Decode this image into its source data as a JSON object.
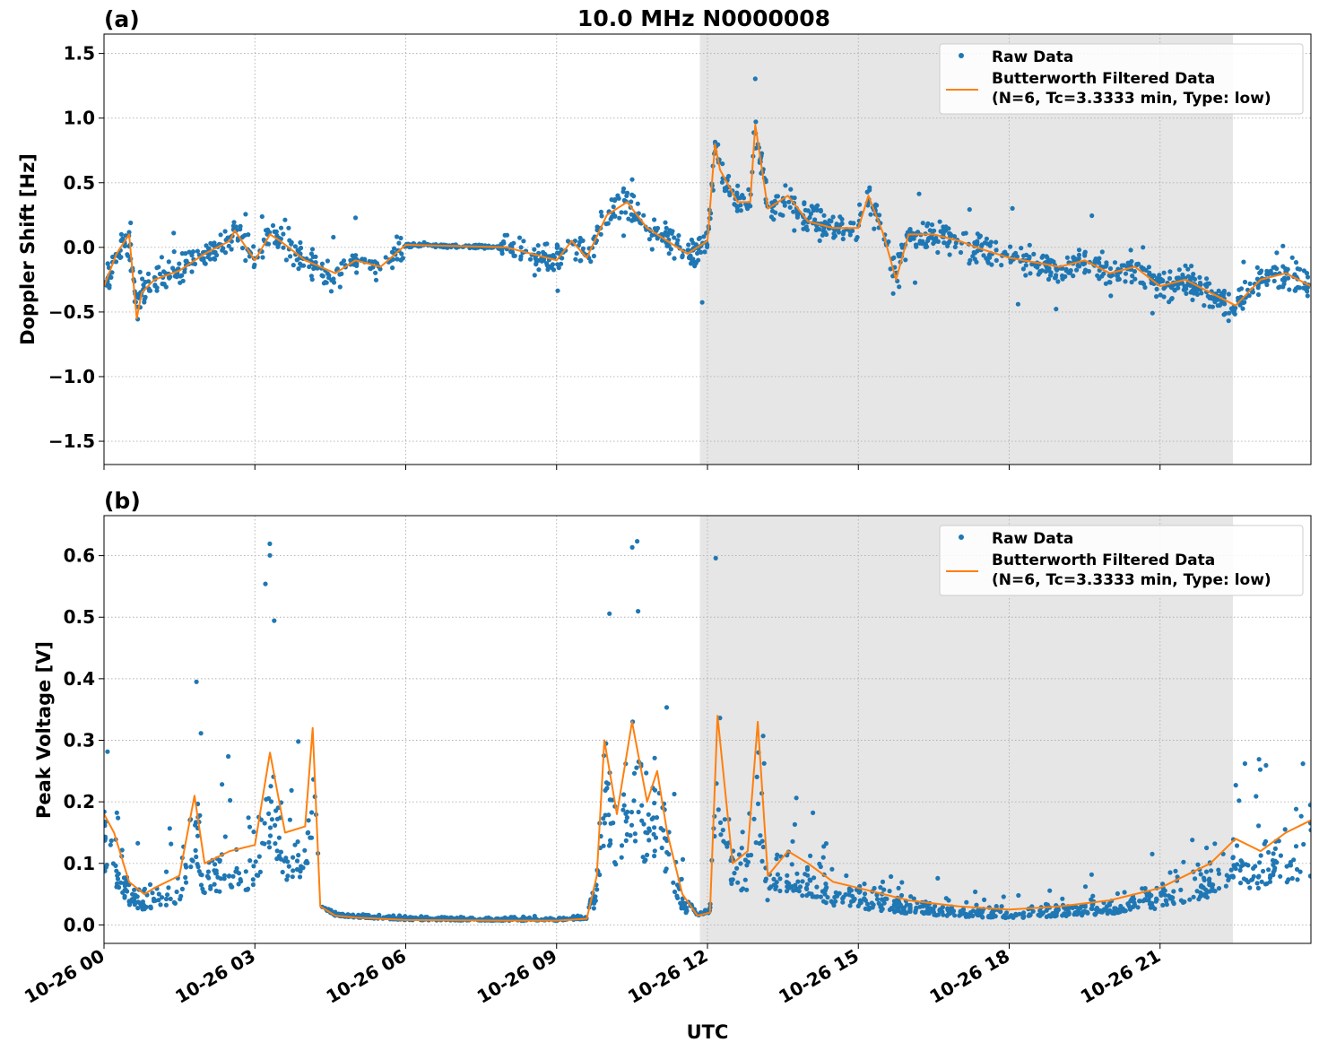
{
  "figure": {
    "title": "10.0 MHz N0000008",
    "xlabel": "UTC"
  },
  "colors": {
    "raw": "#1f77b4",
    "filtered": "#ff7f0e",
    "shade": "#e6e6e6",
    "grid": "#b0b0b0"
  },
  "chart_data": [
    {
      "type": "scatter",
      "panel_label": "(a)",
      "ylabel": "Doppler Shift [Hz]",
      "xlim": [
        "10-26 00:00",
        "10-26 24:00"
      ],
      "ylim": [
        -1.68,
        1.65
      ],
      "x_ticks": [
        0,
        3,
        6,
        9,
        12,
        15,
        18,
        21
      ],
      "y_ticks": [
        1.5,
        1.0,
        0.5,
        0.0,
        -0.5,
        -1.0,
        -1.5
      ],
      "y_tick_labels": [
        "1.5",
        "1.0",
        "0.5",
        "0.0",
        "−0.5",
        "−1.0",
        "−1.5"
      ],
      "shaded_region_hours": [
        11.85,
        22.45
      ],
      "grid": true,
      "legend_position": "top-right",
      "legend": {
        "raw": "Raw Data",
        "filtered_line1": "Butterworth Filtered Data",
        "filtered_line2": "(N=6, Tc=3.3333 min, Type: low)"
      },
      "series": [
        {
          "name": "Butterworth Filtered Data",
          "style": "line",
          "x_hours": [
            0,
            0.25,
            0.5,
            0.65,
            0.75,
            1.0,
            1.5,
            2.0,
            2.5,
            2.6,
            3.0,
            3.3,
            3.5,
            4.0,
            4.3,
            4.6,
            5.0,
            5.5,
            6.0,
            7.0,
            8.0,
            8.5,
            9.0,
            9.3,
            9.6,
            10.0,
            10.4,
            10.8,
            11.2,
            11.6,
            12.0,
            12.15,
            12.25,
            12.6,
            12.85,
            12.95,
            13.2,
            13.6,
            14.0,
            14.5,
            15.0,
            15.2,
            15.5,
            15.75,
            16.0,
            16.5,
            17.0,
            17.5,
            18.0,
            19.0,
            19.5,
            20.0,
            20.5,
            21.0,
            21.5,
            22.0,
            22.5,
            23.0,
            23.5,
            24.0
          ],
          "values": [
            -0.3,
            -0.05,
            0.1,
            -0.55,
            -0.35,
            -0.25,
            -0.18,
            -0.05,
            0.05,
            0.13,
            -0.1,
            0.1,
            0.05,
            -0.1,
            -0.15,
            -0.2,
            -0.1,
            -0.15,
            0.02,
            0.01,
            0.0,
            -0.05,
            -0.1,
            0.05,
            -0.08,
            0.25,
            0.35,
            0.15,
            0.05,
            -0.05,
            0.05,
            0.8,
            0.6,
            0.35,
            0.35,
            0.95,
            0.3,
            0.4,
            0.2,
            0.15,
            0.15,
            0.4,
            0.1,
            -0.25,
            0.1,
            0.1,
            0.05,
            -0.02,
            -0.08,
            -0.15,
            -0.1,
            -0.2,
            -0.15,
            -0.3,
            -0.25,
            -0.35,
            -0.45,
            -0.25,
            -0.2,
            -0.3
          ]
        }
      ]
    },
    {
      "type": "scatter",
      "panel_label": "(b)",
      "ylabel": "Peak Voltage [V]",
      "xlim": [
        "10-26 00:00",
        "10-26 24:00"
      ],
      "ylim": [
        -0.03,
        0.665
      ],
      "x_ticks": [
        0,
        3,
        6,
        9,
        12,
        15,
        18,
        21
      ],
      "x_tick_labels": [
        "10-26 00",
        "10-26 03",
        "10-26 06",
        "10-26 09",
        "10-26 12",
        "10-26 15",
        "10-26 18",
        "10-26 21"
      ],
      "y_ticks": [
        0.6,
        0.5,
        0.4,
        0.3,
        0.2,
        0.1,
        0.0
      ],
      "y_tick_labels": [
        "0.6",
        "0.5",
        "0.4",
        "0.3",
        "0.2",
        "0.1",
        "0.0"
      ],
      "shaded_region_hours": [
        11.85,
        22.45
      ],
      "grid": true,
      "legend_position": "top-right",
      "legend": {
        "raw": "Raw Data",
        "filtered_line1": "Butterworth Filtered Data",
        "filtered_line2": "(N=6, Tc=3.3333 min, Type: low)"
      },
      "series": [
        {
          "name": "Butterworth Filtered Data",
          "style": "line",
          "x_hours": [
            0,
            0.2,
            0.5,
            0.8,
            1.0,
            1.5,
            1.8,
            2.0,
            2.5,
            3.0,
            3.3,
            3.6,
            4.0,
            4.15,
            4.3,
            4.6,
            5.0,
            6.0,
            8.0,
            9.0,
            9.6,
            9.8,
            9.95,
            10.2,
            10.5,
            10.8,
            11.0,
            11.2,
            11.5,
            11.8,
            12.05,
            12.2,
            12.5,
            12.8,
            13.0,
            13.2,
            13.6,
            14.0,
            14.5,
            15.0,
            16.0,
            17.0,
            18.0,
            19.0,
            20.0,
            21.0,
            22.0,
            22.5,
            23.0,
            23.5,
            24.0
          ],
          "values": [
            0.18,
            0.15,
            0.07,
            0.05,
            0.06,
            0.08,
            0.21,
            0.1,
            0.12,
            0.13,
            0.28,
            0.15,
            0.16,
            0.32,
            0.03,
            0.015,
            0.012,
            0.008,
            0.007,
            0.007,
            0.01,
            0.08,
            0.3,
            0.18,
            0.33,
            0.2,
            0.25,
            0.15,
            0.05,
            0.015,
            0.02,
            0.34,
            0.1,
            0.12,
            0.33,
            0.08,
            0.12,
            0.1,
            0.07,
            0.06,
            0.04,
            0.03,
            0.025,
            0.03,
            0.04,
            0.06,
            0.1,
            0.14,
            0.12,
            0.15,
            0.17
          ]
        }
      ]
    }
  ]
}
